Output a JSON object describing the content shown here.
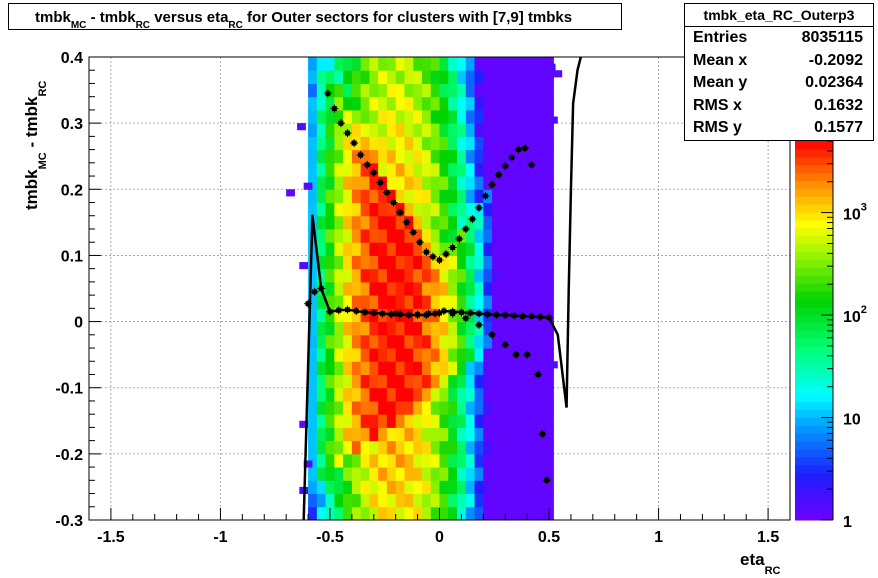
{
  "title": {
    "prefix": "tmbk",
    "sub1": "MC",
    "mid1": " - tmbk",
    "sub2": "RC",
    "mid2": " versus eta",
    "sub3": "RC",
    "suffix": " for Outer sectors for clusters with [7,9] tmbks"
  },
  "stats": {
    "name": "tmbk_eta_RC_Outerp3",
    "rows": [
      {
        "label": "Entries",
        "value": "8035115"
      },
      {
        "label": "Mean x",
        "value": "-0.2092"
      },
      {
        "label": "Mean y",
        "value": "0.02364"
      },
      {
        "label": "RMS x",
        "value": "0.1632"
      },
      {
        "label": "RMS y",
        "value": "0.1577"
      }
    ]
  },
  "chart_data": {
    "type": "heatmap",
    "xlabel_main": "eta",
    "xlabel_sub": "RC",
    "ylabel_main": "tmbk",
    "ylabel_sub1": "MC",
    "ylabel_mid": " - tmbk",
    "ylabel_sub2": "RC",
    "xlim": [
      -1.6,
      1.6
    ],
    "ylim": [
      -0.3,
      0.4
    ],
    "xticks": [
      -1.5,
      -1,
      -0.5,
      0,
      0.5,
      1,
      1.5
    ],
    "xtick_labels": [
      "-1.5",
      "-1",
      "-0.5",
      "0",
      "0.5",
      "1",
      "1.5"
    ],
    "yticks": [
      -0.3,
      -0.2,
      -0.1,
      0,
      0.1,
      0.2,
      0.3,
      0.4
    ],
    "ytick_labels": [
      "-0.3",
      "-0.2",
      "-0.1",
      "0",
      "0.1",
      "0.2",
      "0.3",
      "0.4"
    ],
    "grid": true,
    "colorbar": {
      "scale": "log",
      "range": [
        1,
        5000
      ],
      "tick_labels": [
        {
          "value": 1,
          "base": "1",
          "exp": ""
        },
        {
          "value": 10,
          "base": "10",
          "exp": ""
        },
        {
          "value": 100,
          "base": "10",
          "exp": "2"
        },
        {
          "value": 1000,
          "base": "10",
          "exp": "3"
        }
      ]
    },
    "mean_profile": {
      "x": [
        -0.62,
        -0.58,
        -0.54,
        -0.5,
        -0.46,
        -0.42,
        -0.38,
        -0.34,
        -0.3,
        -0.26,
        -0.22,
        -0.18,
        -0.14,
        -0.1,
        -0.06,
        -0.02,
        0.02,
        0.06,
        0.1,
        0.14,
        0.18,
        0.22,
        0.26,
        0.3,
        0.34,
        0.38,
        0.42,
        0.46,
        0.5,
        0.54,
        0.58
      ],
      "y": [
        -0.3,
        0.16,
        0.05,
        0.015,
        0.017,
        0.018,
        0.016,
        0.014,
        0.013,
        0.012,
        0.011,
        0.011,
        0.01,
        0.01,
        0.01,
        0.012,
        0.016,
        0.015,
        0.014,
        0.013,
        0.012,
        0.011,
        0.01,
        0.01,
        0.009,
        0.008,
        0.008,
        0.007,
        0.006,
        -0.02,
        -0.13
      ]
    },
    "mean_profile_tail": {
      "x": [
        0.58,
        0.59,
        0.6,
        0.61,
        0.63,
        0.66
      ],
      "y": [
        -0.13,
        0.05,
        0.2,
        0.33,
        0.38,
        0.42
      ]
    },
    "upper_branch": {
      "x": [
        -0.6,
        -0.57,
        -0.51,
        -0.48,
        -0.45,
        -0.42,
        -0.39,
        -0.36,
        -0.33,
        -0.3,
        -0.27,
        -0.24,
        -0.21,
        -0.18,
        -0.15,
        -0.12,
        -0.09,
        -0.06,
        -0.03,
        0.0,
        0.03,
        0.06,
        0.09,
        0.12,
        0.15,
        0.18,
        0.21,
        0.24,
        0.27,
        0.3,
        0.33,
        0.36,
        0.39,
        0.42
      ],
      "y": [
        0.027,
        0.045,
        0.345,
        0.322,
        0.3,
        0.285,
        0.27,
        0.252,
        0.237,
        0.225,
        0.21,
        0.195,
        0.18,
        0.165,
        0.15,
        0.135,
        0.12,
        0.105,
        0.098,
        0.093,
        0.102,
        0.112,
        0.125,
        0.14,
        0.155,
        0.172,
        0.19,
        0.207,
        0.222,
        0.235,
        0.248,
        0.26,
        0.262,
        0.237
      ]
    },
    "lower_branch": {
      "x": [
        -0.2,
        -0.1,
        -0.05,
        0.0,
        0.06,
        0.12,
        0.18,
        0.24,
        0.3,
        0.35,
        0.4,
        0.45,
        0.47,
        0.49
      ],
      "y": [
        0.012,
        0.011,
        0.012,
        0.013,
        0.012,
        0.005,
        -0.005,
        -0.02,
        -0.035,
        -0.05,
        -0.05,
        -0.08,
        -0.17,
        -0.24
      ]
    }
  }
}
